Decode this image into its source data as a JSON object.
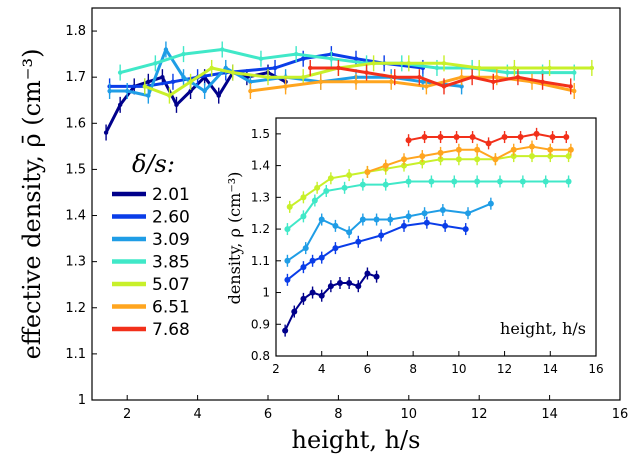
{
  "chart_data": [
    {
      "type": "line",
      "xlabel": "height, h/s",
      "ylabel": "effective density, ρ̄ (cm⁻³)",
      "xlim": [
        1,
        16
      ],
      "ylim": [
        1.0,
        1.85
      ],
      "xticks": [
        "2",
        "4",
        "6",
        "8",
        "10",
        "12",
        "14",
        "16"
      ],
      "yticks": [
        "1",
        "1.1",
        "1.2",
        "1.3",
        "1.4",
        "1.5",
        "1.6",
        "1.7",
        "1.8"
      ],
      "grid": false,
      "legend": {
        "title": "δ/s:",
        "placement": "left",
        "entries": [
          "2.01",
          "2.60",
          "3.09",
          "3.85",
          "5.07",
          "6.51",
          "7.68"
        ]
      },
      "series": [
        {
          "name": "2.01",
          "color": "#00008b",
          "x": [
            1.4,
            1.8,
            2.2,
            2.6,
            3.0,
            3.4,
            3.8,
            4.2,
            4.6,
            5.0,
            5.4,
            6.0,
            6.5
          ],
          "y": [
            1.58,
            1.64,
            1.68,
            1.69,
            1.7,
            1.64,
            1.67,
            1.7,
            1.66,
            1.71,
            1.7,
            1.71,
            1.69
          ]
        },
        {
          "name": "2.60",
          "color": "#0a3de8",
          "x": [
            1.5,
            2.5,
            3.3,
            4.0,
            4.8,
            6.2,
            7.0,
            7.8,
            8.5,
            9.3,
            10.4
          ],
          "y": [
            1.68,
            1.68,
            1.69,
            1.7,
            1.71,
            1.72,
            1.74,
            1.75,
            1.74,
            1.73,
            1.72
          ]
        },
        {
          "name": "3.09",
          "color": "#1f9de6",
          "x": [
            1.5,
            2.0,
            2.6,
            3.1,
            3.6,
            4.2,
            4.8,
            5.5,
            6.5,
            7.5,
            8.5,
            9.5,
            10.4,
            11.5
          ],
          "y": [
            1.67,
            1.67,
            1.66,
            1.76,
            1.7,
            1.67,
            1.72,
            1.69,
            1.7,
            1.69,
            1.7,
            1.7,
            1.69,
            1.68
          ]
        },
        {
          "name": "3.85",
          "color": "#40e8c8",
          "x": [
            1.8,
            2.8,
            3.6,
            4.7,
            5.8,
            6.8,
            7.8,
            8.8,
            9.8,
            10.8,
            11.8,
            12.8,
            13.8,
            14.7
          ],
          "y": [
            1.71,
            1.73,
            1.75,
            1.76,
            1.74,
            1.75,
            1.74,
            1.73,
            1.73,
            1.72,
            1.72,
            1.71,
            1.71,
            1.71
          ]
        },
        {
          "name": "5.07",
          "color": "#c8f02a",
          "x": [
            2.5,
            3.2,
            3.8,
            4.4,
            5.0,
            6.0,
            7.0,
            8.0,
            9.0,
            10.0,
            11.0,
            12.0,
            13.0,
            14.0,
            15.2
          ],
          "y": [
            1.68,
            1.66,
            1.69,
            1.72,
            1.71,
            1.7,
            1.7,
            1.72,
            1.73,
            1.73,
            1.73,
            1.72,
            1.72,
            1.72,
            1.72
          ]
        },
        {
          "name": "6.51",
          "color": "#ffa51f",
          "x": [
            5.5,
            6.5,
            7.5,
            8.5,
            9.5,
            10.5,
            11.5,
            12.5,
            13.5,
            14.7
          ],
          "y": [
            1.67,
            1.68,
            1.69,
            1.69,
            1.69,
            1.68,
            1.7,
            1.7,
            1.69,
            1.67
          ]
        },
        {
          "name": "7.68",
          "color": "#f2301a",
          "x": [
            7.2,
            8.0,
            8.8,
            9.6,
            10.3,
            11.0,
            11.8,
            12.4,
            13.1,
            13.8,
            14.6
          ],
          "y": [
            1.72,
            1.72,
            1.71,
            1.7,
            1.7,
            1.68,
            1.7,
            1.69,
            1.7,
            1.69,
            1.68
          ]
        }
      ]
    },
    {
      "type": "line",
      "xlabel": "height, h/s",
      "ylabel": "density, ρ (cm⁻³)",
      "xlim": [
        2,
        16
      ],
      "ylim": [
        0.8,
        1.55
      ],
      "xticks": [
        "2",
        "4",
        "6",
        "8",
        "10",
        "12",
        "14",
        "16"
      ],
      "yticks": [
        "0.8",
        "0.9",
        "1",
        "1.1",
        "1.2",
        "1.3",
        "1.4",
        "1.5"
      ],
      "grid": false,
      "series": [
        {
          "name": "2.01",
          "color": "#00008b",
          "x": [
            2.4,
            2.8,
            3.2,
            3.6,
            4.0,
            4.4,
            4.8,
            5.2,
            5.6,
            6.0,
            6.4
          ],
          "y": [
            0.88,
            0.94,
            0.98,
            1.0,
            0.99,
            1.02,
            1.03,
            1.03,
            1.02,
            1.06,
            1.05
          ]
        },
        {
          "name": "2.60",
          "color": "#0a3de8",
          "x": [
            2.5,
            3.2,
            3.6,
            4.0,
            4.6,
            5.6,
            6.6,
            7.6,
            8.6,
            9.4,
            10.3
          ],
          "y": [
            1.04,
            1.08,
            1.1,
            1.11,
            1.14,
            1.16,
            1.18,
            1.21,
            1.22,
            1.21,
            1.2
          ]
        },
        {
          "name": "3.09",
          "color": "#1f9de6",
          "x": [
            2.5,
            3.3,
            4.0,
            4.6,
            5.2,
            5.8,
            6.4,
            7.0,
            7.8,
            8.5,
            9.3,
            10.4,
            11.4
          ],
          "y": [
            1.1,
            1.14,
            1.23,
            1.21,
            1.19,
            1.23,
            1.23,
            1.23,
            1.24,
            1.25,
            1.26,
            1.25,
            1.28
          ]
        },
        {
          "name": "3.85",
          "color": "#40e8c8",
          "x": [
            2.5,
            3.2,
            3.7,
            4.2,
            5.0,
            5.8,
            6.8,
            7.8,
            8.8,
            9.8,
            10.8,
            11.8,
            12.8,
            13.8,
            14.8
          ],
          "y": [
            1.2,
            1.24,
            1.29,
            1.32,
            1.33,
            1.34,
            1.34,
            1.35,
            1.35,
            1.35,
            1.35,
            1.35,
            1.35,
            1.35,
            1.35
          ]
        },
        {
          "name": "5.07",
          "color": "#c8f02a",
          "x": [
            2.6,
            3.2,
            3.8,
            4.4,
            5.2,
            6.0,
            6.8,
            7.6,
            8.4,
            9.2,
            10.0,
            10.8,
            11.6,
            12.4,
            13.2,
            14.0,
            14.8
          ],
          "y": [
            1.27,
            1.3,
            1.33,
            1.36,
            1.37,
            1.38,
            1.39,
            1.4,
            1.41,
            1.42,
            1.42,
            1.42,
            1.42,
            1.43,
            1.43,
            1.43,
            1.43
          ]
        },
        {
          "name": "6.51",
          "color": "#ffa51f",
          "x": [
            6.0,
            6.8,
            7.6,
            8.4,
            9.2,
            10.0,
            10.8,
            11.6,
            12.4,
            13.2,
            14.0,
            14.9
          ],
          "y": [
            1.38,
            1.4,
            1.42,
            1.43,
            1.44,
            1.45,
            1.45,
            1.42,
            1.45,
            1.46,
            1.45,
            1.45
          ]
        },
        {
          "name": "7.68",
          "color": "#f2301a",
          "x": [
            7.8,
            8.5,
            9.2,
            9.9,
            10.6,
            11.3,
            12.0,
            12.7,
            13.4,
            14.1,
            14.7
          ],
          "y": [
            1.48,
            1.49,
            1.49,
            1.49,
            1.49,
            1.47,
            1.49,
            1.49,
            1.5,
            1.49,
            1.49
          ]
        }
      ]
    }
  ]
}
